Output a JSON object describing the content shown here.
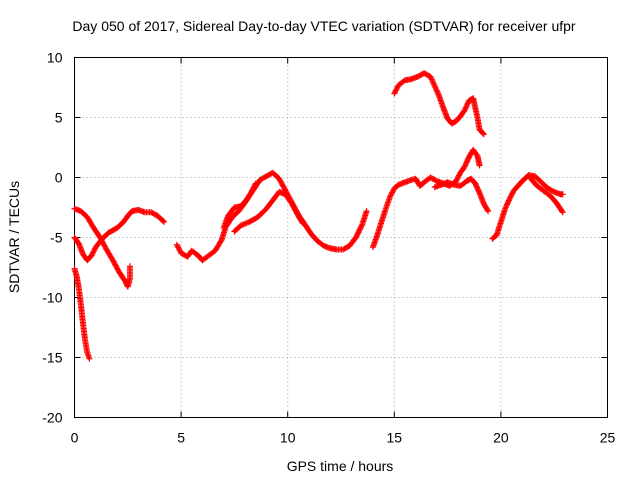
{
  "chart_data": {
    "type": "scatter",
    "title": "Day 050 of 2017, Sidereal Day-to-day VTEC variation (SDTVAR) for receiver ufpr",
    "xlabel": "GPS time / hours",
    "ylabel": "SDTVAR / TECUs",
    "xlim": [
      0,
      25
    ],
    "ylim": [
      -20,
      10
    ],
    "xticks": [
      0,
      5,
      10,
      15,
      20,
      25
    ],
    "yticks": [
      -20,
      -15,
      -10,
      -5,
      0,
      5,
      10
    ],
    "grid": true,
    "marker": "+",
    "color": "#ff0000",
    "series": [
      {
        "values": [
          [
            0.0,
            -7.6
          ],
          [
            0.1,
            -8.2
          ],
          [
            0.2,
            -9.2
          ],
          [
            0.3,
            -10.6
          ],
          [
            0.4,
            -12.2
          ],
          [
            0.5,
            -13.6
          ],
          [
            0.6,
            -14.6
          ],
          [
            0.7,
            -15.1
          ]
        ]
      },
      {
        "values": [
          [
            0.0,
            -5.0
          ],
          [
            0.2,
            -5.5
          ],
          [
            0.4,
            -6.4
          ],
          [
            0.6,
            -6.9
          ],
          [
            0.8,
            -6.5
          ],
          [
            1.0,
            -5.8
          ],
          [
            1.3,
            -5.1
          ],
          [
            1.6,
            -4.6
          ],
          [
            2.0,
            -4.2
          ],
          [
            2.3,
            -3.7
          ],
          [
            2.5,
            -3.2
          ],
          [
            2.7,
            -2.8
          ],
          [
            3.0,
            -2.7
          ],
          [
            3.3,
            -2.9
          ],
          [
            3.6,
            -2.9
          ],
          [
            3.9,
            -3.2
          ],
          [
            4.2,
            -3.7
          ]
        ]
      },
      {
        "values": [
          [
            0.0,
            -2.6
          ],
          [
            0.3,
            -2.8
          ],
          [
            0.6,
            -3.3
          ],
          [
            0.9,
            -4.2
          ],
          [
            1.2,
            -5.0
          ],
          [
            1.5,
            -6.0
          ],
          [
            1.8,
            -6.9
          ],
          [
            2.1,
            -7.9
          ],
          [
            2.4,
            -8.7
          ],
          [
            2.5,
            -9.1
          ],
          [
            2.6,
            -8.4
          ],
          [
            2.6,
            -7.4
          ]
        ]
      },
      {
        "values": [
          [
            4.8,
            -5.6
          ],
          [
            5.0,
            -6.3
          ],
          [
            5.3,
            -6.6
          ],
          [
            5.5,
            -6.1
          ],
          [
            5.8,
            -6.5
          ],
          [
            6.0,
            -6.9
          ],
          [
            6.3,
            -6.5
          ],
          [
            6.6,
            -6.1
          ],
          [
            6.9,
            -5.2
          ],
          [
            7.1,
            -4.1
          ],
          [
            7.4,
            -3.3
          ],
          [
            7.7,
            -2.8
          ],
          [
            8.0,
            -2.1
          ],
          [
            8.3,
            -1.2
          ],
          [
            8.5,
            -0.5
          ]
        ]
      },
      {
        "values": [
          [
            7.0,
            -4.2
          ],
          [
            7.2,
            -3.2
          ],
          [
            7.5,
            -2.5
          ],
          [
            7.8,
            -2.4
          ],
          [
            8.1,
            -1.8
          ],
          [
            8.4,
            -1.0
          ],
          [
            8.7,
            -0.2
          ],
          [
            9.0,
            0.1
          ],
          [
            9.3,
            0.4
          ],
          [
            9.6,
            -0.1
          ],
          [
            9.9,
            -1.1
          ],
          [
            10.2,
            -2.1
          ],
          [
            10.5,
            -3.1
          ],
          [
            10.8,
            -3.9
          ],
          [
            11.1,
            -4.7
          ],
          [
            11.4,
            -5.3
          ],
          [
            11.7,
            -5.7
          ],
          [
            12.0,
            -5.9
          ],
          [
            12.3,
            -6.0
          ],
          [
            12.6,
            -6.0
          ],
          [
            12.9,
            -5.7
          ],
          [
            13.2,
            -5.0
          ],
          [
            13.5,
            -3.9
          ],
          [
            13.7,
            -2.8
          ]
        ]
      },
      {
        "values": [
          [
            7.5,
            -4.5
          ],
          [
            7.8,
            -4.0
          ],
          [
            8.2,
            -3.7
          ],
          [
            8.6,
            -3.3
          ],
          [
            9.0,
            -2.6
          ],
          [
            9.3,
            -1.9
          ],
          [
            9.6,
            -1.2
          ],
          [
            9.9,
            -1.4
          ],
          [
            10.2,
            -2.2
          ],
          [
            10.5,
            -3.2
          ],
          [
            10.7,
            -3.8
          ]
        ]
      },
      {
        "values": [
          [
            14.0,
            -5.8
          ],
          [
            14.2,
            -4.8
          ],
          [
            14.4,
            -3.7
          ],
          [
            14.6,
            -2.6
          ],
          [
            14.8,
            -1.6
          ],
          [
            15.0,
            -0.9
          ],
          [
            15.2,
            -0.6
          ],
          [
            15.5,
            -0.4
          ],
          [
            15.8,
            -0.2
          ],
          [
            16.0,
            -0.1
          ],
          [
            16.2,
            -0.7
          ],
          [
            16.4,
            -0.4
          ],
          [
            16.7,
            0.0
          ],
          [
            17.0,
            -0.3
          ],
          [
            17.3,
            -0.5
          ],
          [
            17.6,
            -0.7
          ],
          [
            17.9,
            -0.3
          ],
          [
            18.1,
            0.4
          ],
          [
            18.3,
            0.9
          ],
          [
            18.5,
            1.7
          ],
          [
            18.7,
            2.3
          ],
          [
            18.9,
            1.8
          ],
          [
            19.0,
            1.0
          ]
        ]
      },
      {
        "values": [
          [
            15.0,
            7.0
          ],
          [
            15.2,
            7.7
          ],
          [
            15.5,
            8.1
          ],
          [
            15.8,
            8.2
          ],
          [
            16.1,
            8.4
          ],
          [
            16.4,
            8.7
          ],
          [
            16.7,
            8.4
          ],
          [
            16.9,
            7.6
          ],
          [
            17.1,
            6.8
          ],
          [
            17.3,
            5.8
          ],
          [
            17.5,
            4.9
          ],
          [
            17.7,
            4.5
          ],
          [
            17.9,
            4.7
          ],
          [
            18.1,
            5.1
          ],
          [
            18.3,
            5.6
          ],
          [
            18.5,
            6.4
          ],
          [
            18.7,
            6.6
          ],
          [
            18.9,
            5.0
          ],
          [
            19.0,
            4.0
          ],
          [
            19.2,
            3.6
          ]
        ]
      },
      {
        "values": [
          [
            16.9,
            -0.8
          ],
          [
            17.2,
            -0.6
          ],
          [
            17.5,
            -0.4
          ],
          [
            17.8,
            -0.6
          ],
          [
            18.1,
            -0.7
          ],
          [
            18.4,
            -0.3
          ],
          [
            18.6,
            -0.1
          ],
          [
            18.8,
            -0.5
          ],
          [
            19.0,
            -1.3
          ],
          [
            19.2,
            -2.2
          ],
          [
            19.4,
            -2.8
          ]
        ]
      },
      {
        "values": [
          [
            19.6,
            -5.1
          ],
          [
            19.8,
            -4.8
          ],
          [
            20.0,
            -3.7
          ],
          [
            20.2,
            -2.6
          ],
          [
            20.4,
            -1.8
          ],
          [
            20.6,
            -1.1
          ],
          [
            20.8,
            -0.7
          ],
          [
            21.0,
            -0.3
          ],
          [
            21.3,
            0.2
          ],
          [
            21.6,
            0.1
          ],
          [
            21.9,
            -0.4
          ],
          [
            22.2,
            -0.9
          ],
          [
            22.5,
            -1.2
          ],
          [
            22.8,
            -1.4
          ],
          [
            22.9,
            -1.4
          ]
        ]
      },
      {
        "values": [
          [
            21.4,
            -0.1
          ],
          [
            21.7,
            -0.7
          ],
          [
            22.0,
            -1.1
          ],
          [
            22.3,
            -1.5
          ],
          [
            22.6,
            -2.1
          ],
          [
            22.9,
            -2.9
          ]
        ]
      }
    ]
  }
}
